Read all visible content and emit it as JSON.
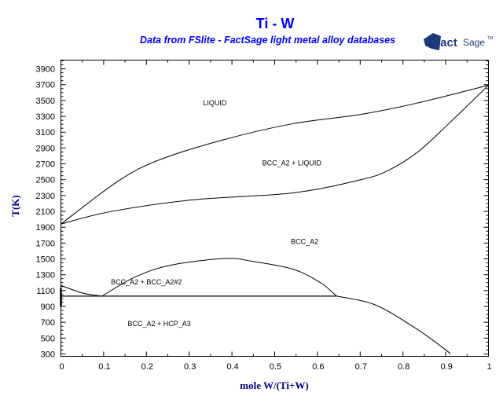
{
  "chart_data": {
    "type": "line",
    "title": "Ti - W",
    "subtitle": "Data from FSlite - FactSage light metal alloy databases",
    "logo_text": "FactSage",
    "xlabel": "mole W/(Ti+W)",
    "ylabel": "T(K)",
    "xlim": [
      0,
      1
    ],
    "ylim": [
      270,
      4010
    ],
    "xticks": [
      "0",
      "0.1",
      "0.2",
      "0.3",
      "0.4",
      "0.5",
      "0.6",
      "0.7",
      "0.8",
      "0.9",
      "1"
    ],
    "yticks": [
      "300",
      "500",
      "700",
      "900",
      "1100",
      "1300",
      "1500",
      "1700",
      "1900",
      "2100",
      "2300",
      "2500",
      "2700",
      "2900",
      "3100",
      "3300",
      "3500",
      "3700",
      "3900"
    ],
    "grid": false,
    "series": [
      {
        "name": "liquidus",
        "x": [
          0,
          0.134,
          0.23,
          0.383,
          0.543,
          0.703,
          0.831,
          1.0
        ],
        "y": [
          1940,
          2483,
          2750,
          3008,
          3207,
          3326,
          3465,
          3693
        ]
      },
      {
        "name": "solidus",
        "x": [
          0,
          0.115,
          0.307,
          0.543,
          0.703,
          0.767,
          0.837,
          0.907,
          1.0
        ],
        "y": [
          1940,
          2096,
          2245,
          2334,
          2502,
          2621,
          2860,
          3207,
          3693
        ]
      },
      {
        "name": "hcp-bcc boundary",
        "x": [
          0,
          0.05,
          0.096
        ],
        "y": [
          1165,
          1070,
          1030
        ]
      },
      {
        "name": "miscibility gap",
        "x": [
          0.096,
          0.173,
          0.256,
          0.383,
          0.447,
          0.543,
          0.607,
          0.645
        ],
        "y": [
          1030,
          1270,
          1420,
          1505,
          1470,
          1370,
          1200,
          1030
        ]
      },
      {
        "name": "bcc solvus",
        "x": [
          0.645,
          0.735,
          0.831,
          0.898,
          0.911
        ],
        "y": [
          1030,
          920,
          620,
          360,
          300
        ]
      },
      {
        "name": "monotectoid",
        "x": [
          0,
          0.645
        ],
        "y": [
          1030,
          1030
        ]
      },
      {
        "name": "ti-hcp boundary",
        "x": [
          0,
          0
        ],
        "y": [
          900,
          1130
        ]
      }
    ],
    "annotations": [
      {
        "text": "LIQUID",
        "x": 0.36,
        "y": 3440
      },
      {
        "text": "BCC_A2 + LIQUID",
        "x": 0.54,
        "y": 2680
      },
      {
        "text": "BCC_A2",
        "x": 0.57,
        "y": 1690
      },
      {
        "text": "BCC_A2 + BCC_A2#2",
        "x": 0.2,
        "y": 1180
      },
      {
        "text": "BCC_A2 + HCP_A3",
        "x": 0.23,
        "y": 650
      }
    ],
    "colors": {
      "title": "#0000ff",
      "axis_title": "#000080",
      "logo": "#1a3a7a"
    }
  }
}
